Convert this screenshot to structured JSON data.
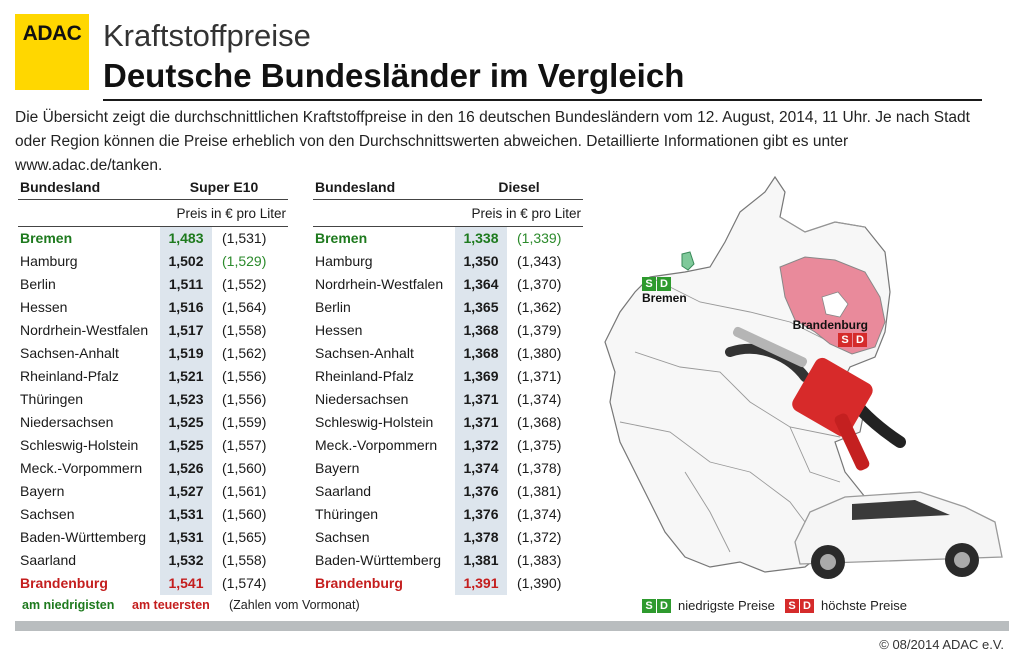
{
  "logo": "ADAC",
  "title": "Kraftstoffpreise",
  "subtitle": "Deutsche Bundesländer im Vergleich",
  "intro": "Die Übersicht zeigt die durchschnittlichen Kraftstoffpreise in den 16  deutschen Bundesländern vom  12. August, 2014, 11 Uhr. Je nach Stadt oder Region können die Preise erheblich von den Durchschnittswerten abweichen. Detaillierte Informationen gibt es unter www.adac.de/tanken.",
  "colors": {
    "logo": "#ffd700",
    "cheapest": "#1e7a1e",
    "priciest": "#c41e1e",
    "value_bg": "#dde5ed"
  },
  "tables": [
    {
      "col_name": "Bundesland",
      "col_fuel": "Super E10",
      "unit": "Preis in € pro Liter",
      "rows": [
        {
          "name": "Bremen",
          "price": "1,483",
          "prev": "(1,531)",
          "status": "low",
          "prev_status": ""
        },
        {
          "name": "Hamburg",
          "price": "1,502",
          "prev": "(1,529)",
          "status": "",
          "prev_status": "low"
        },
        {
          "name": "Berlin",
          "price": "1,511",
          "prev": "(1,552)",
          "status": "",
          "prev_status": ""
        },
        {
          "name": "Hessen",
          "price": "1,516",
          "prev": "(1,564)",
          "status": "",
          "prev_status": ""
        },
        {
          "name": "Nordrhein-Westfalen",
          "price": "1,517",
          "prev": "(1,558)",
          "status": "",
          "prev_status": ""
        },
        {
          "name": "Sachsen-Anhalt",
          "price": "1,519",
          "prev": "(1,562)",
          "status": "",
          "prev_status": ""
        },
        {
          "name": "Rheinland-Pfalz",
          "price": "1,521",
          "prev": "(1,556)",
          "status": "",
          "prev_status": ""
        },
        {
          "name": "Thüringen",
          "price": "1,523",
          "prev": "(1,556)",
          "status": "",
          "prev_status": ""
        },
        {
          "name": "Niedersachsen",
          "price": "1,525",
          "prev": "(1,559)",
          "status": "",
          "prev_status": ""
        },
        {
          "name": "Schleswig-Holstein",
          "price": "1,525",
          "prev": "(1,557)",
          "status": "",
          "prev_status": ""
        },
        {
          "name": "Meck.-Vorpommern",
          "price": "1,526",
          "prev": "(1,560)",
          "status": "",
          "prev_status": ""
        },
        {
          "name": "Bayern",
          "price": "1,527",
          "prev": "(1,561)",
          "status": "",
          "prev_status": ""
        },
        {
          "name": "Sachsen",
          "price": "1,531",
          "prev": "(1,560)",
          "status": "",
          "prev_status": ""
        },
        {
          "name": "Baden-Württemberg",
          "price": "1,531",
          "prev": "(1,565)",
          "status": "",
          "prev_status": ""
        },
        {
          "name": "Saarland",
          "price": "1,532",
          "prev": "(1,558)",
          "status": "",
          "prev_status": ""
        },
        {
          "name": "Brandenburg",
          "price": "1,541",
          "prev": "(1,574)",
          "status": "high",
          "prev_status": ""
        }
      ]
    },
    {
      "col_name": "Bundesland",
      "col_fuel": "Diesel",
      "unit": "Preis in € pro Liter",
      "rows": [
        {
          "name": "Bremen",
          "price": "1,338",
          "prev": "(1,339)",
          "status": "low",
          "prev_status": "low"
        },
        {
          "name": "Hamburg",
          "price": "1,350",
          "prev": "(1,343)",
          "status": "",
          "prev_status": ""
        },
        {
          "name": "Nordrhein-Westfalen",
          "price": "1,364",
          "prev": "(1,370)",
          "status": "",
          "prev_status": ""
        },
        {
          "name": "Berlin",
          "price": "1,365",
          "prev": "(1,362)",
          "status": "",
          "prev_status": ""
        },
        {
          "name": "Hessen",
          "price": "1,368",
          "prev": "(1,379)",
          "status": "",
          "prev_status": ""
        },
        {
          "name": "Sachsen-Anhalt",
          "price": "1,368",
          "prev": "(1,380)",
          "status": "",
          "prev_status": ""
        },
        {
          "name": "Rheinland-Pfalz",
          "price": "1,369",
          "prev": "(1,371)",
          "status": "",
          "prev_status": ""
        },
        {
          "name": "Niedersachsen",
          "price": "1,371",
          "prev": "(1,374)",
          "status": "",
          "prev_status": ""
        },
        {
          "name": "Schleswig-Holstein",
          "price": "1,371",
          "prev": "(1,368)",
          "status": "",
          "prev_status": ""
        },
        {
          "name": "Meck.-Vorpommern",
          "price": "1,372",
          "prev": "(1,375)",
          "status": "",
          "prev_status": ""
        },
        {
          "name": "Bayern",
          "price": "1,374",
          "prev": "(1,378)",
          "status": "",
          "prev_status": ""
        },
        {
          "name": "Saarland",
          "price": "1,376",
          "prev": "(1,381)",
          "status": "",
          "prev_status": ""
        },
        {
          "name": "Thüringen",
          "price": "1,376",
          "prev": "(1,374)",
          "status": "",
          "prev_status": ""
        },
        {
          "name": "Sachsen",
          "price": "1,378",
          "prev": "(1,372)",
          "status": "",
          "prev_status": ""
        },
        {
          "name": "Baden-Württemberg",
          "price": "1,381",
          "prev": "(1,383)",
          "status": "",
          "prev_status": ""
        },
        {
          "name": "Brandenburg",
          "price": "1,391",
          "prev": "(1,390)",
          "status": "high",
          "prev_status": ""
        }
      ]
    }
  ],
  "legend": {
    "lowest": "am niedrigisten",
    "highest": "am teuersten",
    "note": "(Zahlen vom Vormonat)",
    "sd_letters": [
      "S",
      "D"
    ],
    "sd_low": "niedrigste Preise",
    "sd_high": "höchste Preise"
  },
  "map": {
    "low_city": "Bremen",
    "high_state": "Brandenburg"
  },
  "copyright": "© 08/2014 ADAC e.V."
}
